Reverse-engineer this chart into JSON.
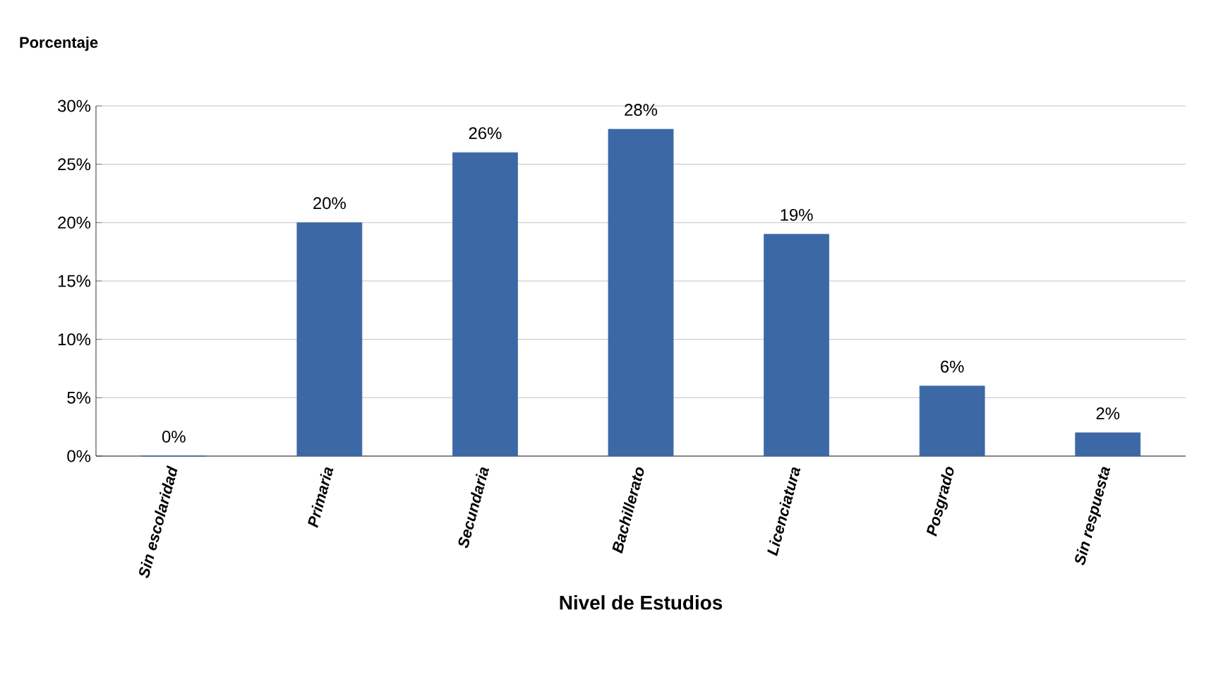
{
  "chart_data": {
    "type": "bar",
    "ylabel": "Porcentaje",
    "xlabel": "Nivel de Estudios",
    "categories": [
      "Sin escolaridad",
      "Primaria",
      "Secundaria",
      "Bachillerato",
      "Licenciatura",
      "Posgrado",
      "Sin respuesta"
    ],
    "values": [
      0,
      20,
      26,
      28,
      19,
      6,
      2
    ],
    "value_labels": [
      "0%",
      "20%",
      "26%",
      "28%",
      "19%",
      "6%",
      "2%"
    ],
    "color": "#3d68a6",
    "ylim": [
      0,
      30
    ],
    "yticks": [
      {
        "value": 0,
        "label": "0%"
      },
      {
        "value": 5,
        "label": "5%"
      },
      {
        "value": 10,
        "label": "10%"
      },
      {
        "value": 15,
        "label": "15%"
      },
      {
        "value": 20,
        "label": "20%"
      },
      {
        "value": 25,
        "label": "25%"
      },
      {
        "value": 30,
        "label": "30%"
      }
    ],
    "grid": "y"
  }
}
